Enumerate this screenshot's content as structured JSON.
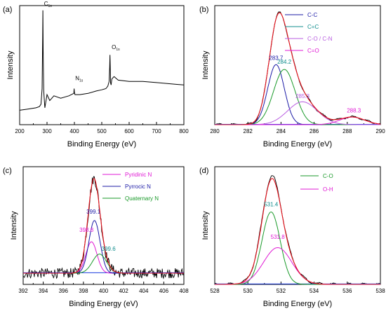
{
  "colors": {
    "black": "#000000",
    "red": "#e8141e",
    "navy": "#1b1aa6",
    "green": "#1a9a2a",
    "teal": "#0f8c8c",
    "violet": "#b85ce0",
    "magenta": "#e01ad4",
    "blue": "#1d3fe0"
  },
  "chart_data": [
    {
      "panel": "(a)",
      "type": "line",
      "xlabel": "Binding Energy (eV)",
      "ylabel": "Intensity",
      "xlim": [
        200,
        800
      ],
      "xticks": [
        "200",
        "300",
        "400",
        "500",
        "600",
        "700",
        "800"
      ],
      "grid": false,
      "series": [
        {
          "color": "black",
          "x": [
            200,
            230,
            260,
            272,
            278,
            282,
            284,
            285,
            286,
            288,
            292,
            300,
            310,
            325,
            350,
            380,
            398,
            399,
            400,
            401,
            402,
            420,
            450,
            480,
            500,
            515,
            522,
            527,
            529,
            530,
            531,
            532,
            534,
            537,
            545,
            560,
            600,
            650,
            700,
            750,
            800
          ],
          "y": [
            0.12,
            0.13,
            0.14,
            0.15,
            0.17,
            0.3,
            0.72,
            0.95,
            0.62,
            0.28,
            0.14,
            0.25,
            0.2,
            0.24,
            0.22,
            0.24,
            0.26,
            0.3,
            0.27,
            0.26,
            0.25,
            0.25,
            0.26,
            0.28,
            0.29,
            0.3,
            0.32,
            0.36,
            0.48,
            0.58,
            0.48,
            0.35,
            0.33,
            0.38,
            0.4,
            0.37,
            0.36,
            0.36,
            0.35,
            0.34,
            0.33
          ]
        }
      ],
      "annotations": [
        {
          "text": "C",
          "sub": "1s",
          "x": 284,
          "y": 0.99
        },
        {
          "text": "N",
          "sub": "1s",
          "x": 398,
          "y": 0.37
        },
        {
          "text": "O",
          "sub": "1s",
          "x": 531,
          "y": 0.63
        }
      ]
    },
    {
      "panel": "(b)",
      "type": "line",
      "xlabel": "Binding Energy (eV)",
      "ylabel": "Intensity",
      "xlim": [
        280,
        290
      ],
      "xticks": [
        "280",
        "282",
        "284",
        "286",
        "288",
        "290"
      ],
      "grid": false,
      "legend": "top-right",
      "legend_entries": [
        {
          "label": "C-C",
          "color": "navy"
        },
        {
          "label": "C=C",
          "color": "teal"
        },
        {
          "label": "C-O / C-N",
          "color": "violet"
        },
        {
          "label": "C=O",
          "color": "magenta"
        }
      ],
      "series": [
        {
          "color": "navy",
          "center": 283.7,
          "height": 0.63,
          "sigma": 0.5
        },
        {
          "color": "green",
          "center": 284.2,
          "height": 0.58,
          "sigma": 0.65
        },
        {
          "color": "violet",
          "center": 285.3,
          "height": 0.24,
          "sigma": 0.9
        },
        {
          "color": "magenta",
          "center": 288.3,
          "height": 0.08,
          "sigma": 0.75
        }
      ],
      "peak_labels": [
        {
          "text": "283.7",
          "color": "navy",
          "x": 283.7,
          "y": 0.68
        },
        {
          "text": "284.2",
          "color": "teal",
          "x": 284.2,
          "y": 0.64
        },
        {
          "text": "285.3",
          "color": "violet",
          "x": 285.3,
          "y": 0.28
        },
        {
          "text": "288.3",
          "color": "magenta",
          "x": 288.4,
          "y": 0.13
        }
      ]
    },
    {
      "panel": "(c)",
      "type": "line",
      "xlabel": "Binding Energy (eV)",
      "ylabel": "Intensity",
      "xlim": [
        392,
        408
      ],
      "xticks": [
        "392",
        "394",
        "396",
        "398",
        "400",
        "402",
        "404",
        "406",
        "408"
      ],
      "grid": false,
      "legend": "top-right",
      "legend_entries": [
        {
          "label": "Pyridinic N",
          "color": "magenta"
        },
        {
          "label": "Pyrrocic N",
          "color": "navy"
        },
        {
          "label": "Quaternary N",
          "color": "green"
        }
      ],
      "baseline": 0.1,
      "series": [
        {
          "color": "magenta",
          "center": 398.8,
          "height": 0.28,
          "sigma": 0.55
        },
        {
          "color": "navy",
          "center": 399.1,
          "height": 0.47,
          "sigma": 0.55
        },
        {
          "color": "green",
          "center": 399.6,
          "height": 0.17,
          "sigma": 0.7
        }
      ],
      "peak_labels": [
        {
          "text": "398.8",
          "color": "magenta",
          "x": 398.3,
          "y": 0.47
        },
        {
          "text": "399.1",
          "color": "navy",
          "x": 399.0,
          "y": 0.63
        },
        {
          "text": "399.6",
          "color": "teal",
          "x": 400.5,
          "y": 0.3
        }
      ]
    },
    {
      "panel": "(d)",
      "type": "line",
      "xlabel": "Binding Energy (eV)",
      "ylabel": "Intensity",
      "xlim": [
        528,
        538
      ],
      "xticks": [
        "528",
        "530",
        "532",
        "534",
        "536",
        "538"
      ],
      "grid": false,
      "legend": "top-right",
      "legend_entries": [
        {
          "label": "C-O",
          "color": "green"
        },
        {
          "label": "O-H",
          "color": "magenta"
        }
      ],
      "series": [
        {
          "color": "green",
          "center": 531.4,
          "height": 0.65,
          "sigma": 0.55
        },
        {
          "color": "magenta",
          "center": 531.8,
          "height": 0.33,
          "sigma": 0.85
        }
      ],
      "peak_labels": [
        {
          "text": "531.4",
          "color": "teal",
          "x": 531.4,
          "y": 0.7
        },
        {
          "text": "531.8",
          "color": "magenta",
          "x": 531.8,
          "y": 0.41
        }
      ]
    }
  ]
}
